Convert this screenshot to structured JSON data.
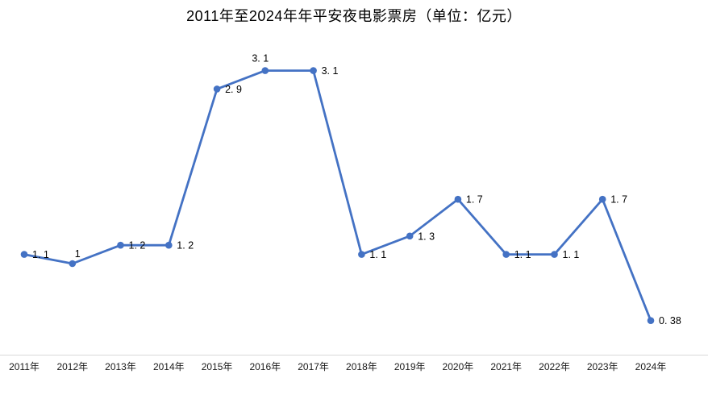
{
  "chart_data": {
    "type": "line",
    "title": "2011年至2024年年平安夜电影票房（单位：亿元）",
    "categories": [
      "2011年",
      "2012年",
      "2013年",
      "2014年",
      "2015年",
      "2016年",
      "2017年",
      "2018年",
      "2019年",
      "2020年",
      "2021年",
      "2022年",
      "2023年",
      "2024年"
    ],
    "series": [
      {
        "name": "平安夜电影票房",
        "values": [
          1.1,
          1,
          1.2,
          1.2,
          2.9,
          3.1,
          3.1,
          1.1,
          1.3,
          1.7,
          1.1,
          1.1,
          1.7,
          0.38
        ],
        "labels": [
          "1. 1",
          "1",
          "1. 2",
          "1. 2",
          "2. 9",
          "3. 1",
          "3. 1",
          "1. 1",
          "1. 3",
          "1. 7",
          "1. 1",
          "1. 1",
          "1. 7",
          "0. 38"
        ],
        "label_placements": [
          "right",
          "above-right",
          "right",
          "right",
          "right",
          "above",
          "right",
          "right",
          "right",
          "right",
          "right",
          "right",
          "right",
          "right"
        ]
      }
    ],
    "xlabel": "",
    "ylabel": "",
    "ylim": [
      0,
      3.5
    ],
    "grid": false,
    "legend_position": "none",
    "line_color": "#4472c4",
    "marker_color": "#4472c4",
    "axis_color": "#d9d9d9",
    "label_color": "#000000",
    "tick_color": "#1a1a1a"
  }
}
